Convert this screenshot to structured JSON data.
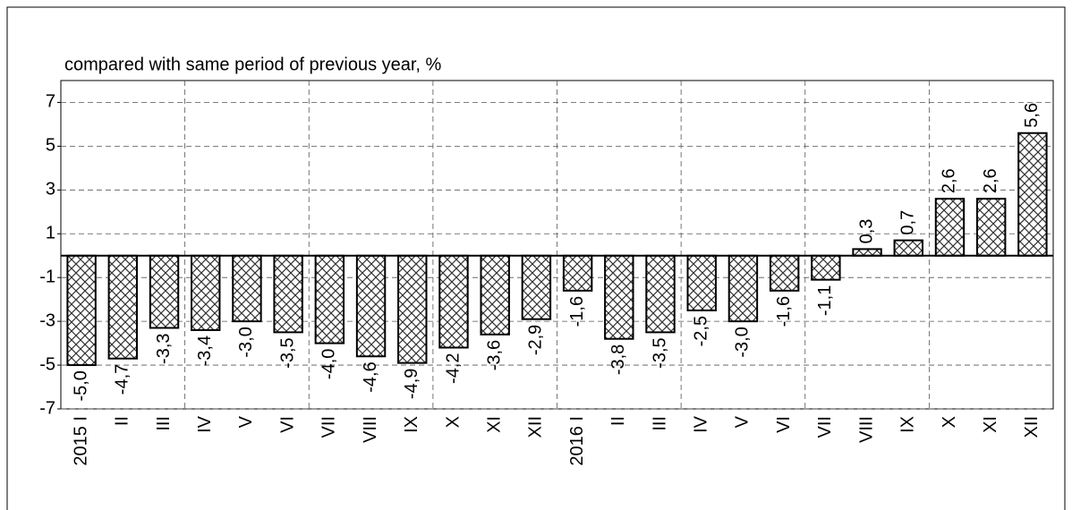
{
  "chart_data": {
    "type": "bar",
    "title": "compared with same period of previous year, %",
    "categories": [
      "2015 I",
      "II",
      "III",
      "IV",
      "V",
      "VI",
      "VII",
      "VIII",
      "IX",
      "X",
      "XI",
      "XII",
      "2016 I",
      "II",
      "III",
      "IV",
      "V",
      "VI",
      "VII",
      "VIII",
      "IX",
      "X",
      "XI",
      "XII"
    ],
    "values": [
      -5.0,
      -4.7,
      -3.3,
      -3.4,
      -3.0,
      -3.5,
      -4.0,
      -4.6,
      -4.9,
      -4.2,
      -3.6,
      -2.9,
      -1.6,
      -3.8,
      -3.5,
      -2.5,
      -3.0,
      -1.6,
      -1.1,
      0.3,
      0.7,
      2.6,
      2.6,
      5.6
    ],
    "value_labels": [
      "-5,0",
      "-4,7",
      "-3,3",
      "-3,4",
      "-3,0",
      "-3,5",
      "-4,0",
      "-4,6",
      "-4,9",
      "-4,2",
      "-3,6",
      "-2,9",
      "-1,6",
      "-3,8",
      "-3,5",
      "-2,5",
      "-3,0",
      "-1,6",
      "-1,1",
      "0,3",
      "0,7",
      "2,6",
      "2,6",
      "5,6"
    ],
    "color": "#000000",
    "ylim": [
      -7,
      8
    ],
    "yticks": [
      -7,
      -5,
      -3,
      -1,
      1,
      3,
      5,
      7
    ],
    "grid": true
  }
}
